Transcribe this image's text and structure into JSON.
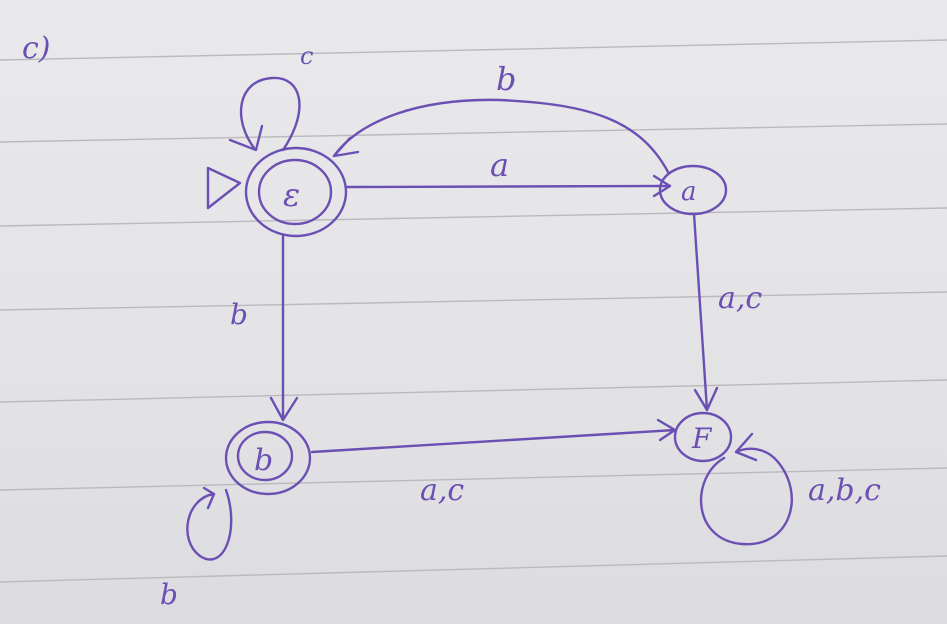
{
  "part_label": "c)",
  "colors": {
    "ink": "#6b4fb3",
    "paper": "#e6e6e8",
    "rules": "#b9b9bf"
  },
  "automaton": {
    "states": [
      {
        "id": "eps",
        "label": "ε",
        "start": true,
        "accepting": true
      },
      {
        "id": "a",
        "label": "a",
        "start": false,
        "accepting": false
      },
      {
        "id": "b",
        "label": "b",
        "start": false,
        "accepting": true
      },
      {
        "id": "F",
        "label": "F",
        "start": false,
        "accepting": false
      }
    ],
    "transitions": [
      {
        "from": "eps",
        "to": "eps",
        "label": "c"
      },
      {
        "from": "a",
        "to": "eps",
        "label": "b"
      },
      {
        "from": "eps",
        "to": "a",
        "label": "a"
      },
      {
        "from": "eps",
        "to": "b",
        "label": "b"
      },
      {
        "from": "a",
        "to": "F",
        "label": "a,c"
      },
      {
        "from": "b",
        "to": "F",
        "label": "a,c"
      },
      {
        "from": "b",
        "to": "b",
        "label": "b"
      },
      {
        "from": "F",
        "to": "F",
        "label": "a,b,c"
      }
    ]
  }
}
